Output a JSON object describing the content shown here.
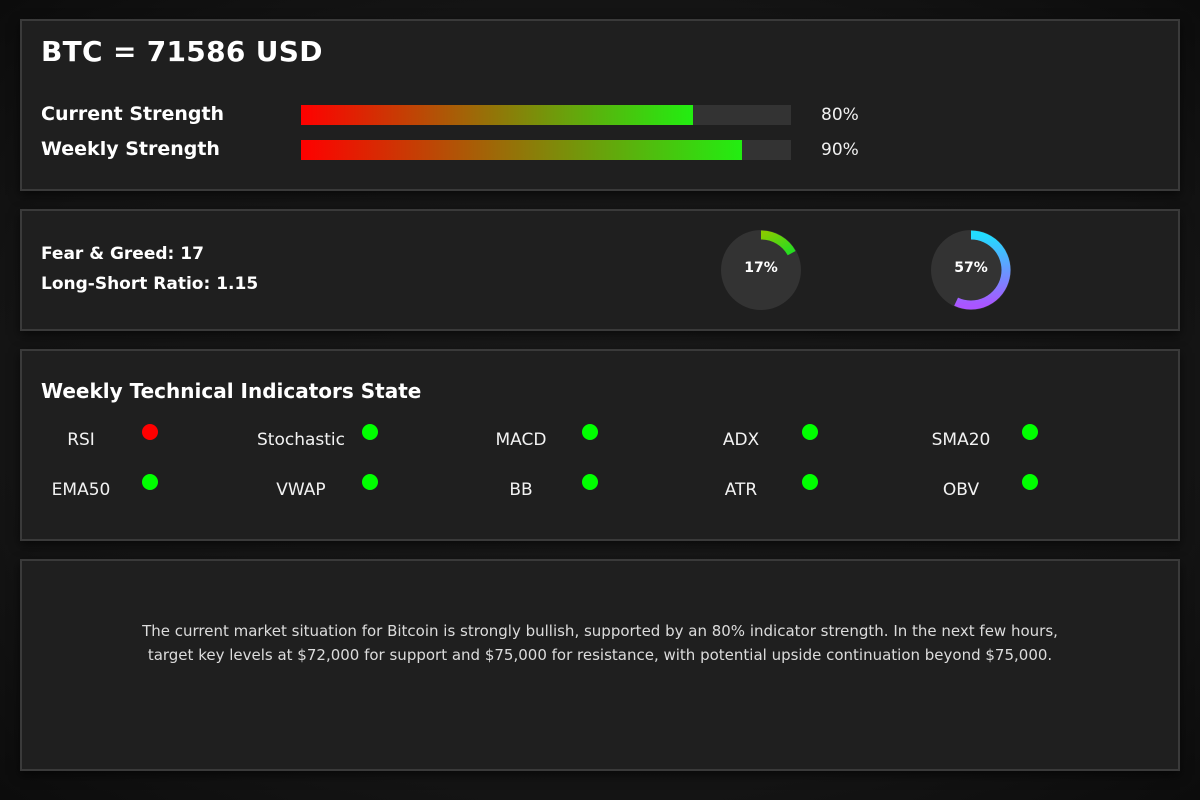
{
  "header": {
    "title": "BTC = 71586 USD"
  },
  "strength": [
    {
      "label": "Current Strength",
      "value": 80,
      "value_text": "80%"
    },
    {
      "label": "Weekly Strength",
      "value": 90,
      "value_text": "90%"
    }
  ],
  "sentiment": {
    "fear_greed_text": "Fear & Greed: 17",
    "long_short_text": "Long-Short Ratio: 1.15",
    "gauges": [
      {
        "value": 17,
        "label": "17%",
        "color_start": "#88cc00",
        "color_end": "#22dd22"
      },
      {
        "value": 57,
        "label": "57%",
        "color_start": "#22ddff",
        "color_end": "#aa55ff"
      }
    ]
  },
  "indicators": {
    "title": "Weekly Technical Indicators State",
    "items": [
      {
        "name": "RSI",
        "state_color": "#ff0000"
      },
      {
        "name": "Stochastic",
        "state_color": "#00ff00"
      },
      {
        "name": "MACD",
        "state_color": "#00ff00"
      },
      {
        "name": "ADX",
        "state_color": "#00ff00"
      },
      {
        "name": "SMA20",
        "state_color": "#00ff00"
      },
      {
        "name": "EMA50",
        "state_color": "#00ff00"
      },
      {
        "name": "VWAP",
        "state_color": "#00ff00"
      },
      {
        "name": "BB",
        "state_color": "#00ff00"
      },
      {
        "name": "ATR",
        "state_color": "#00ff00"
      },
      {
        "name": "OBV",
        "state_color": "#00ff00"
      }
    ]
  },
  "summary": {
    "line1": "The current market situation for Bitcoin is strongly bullish, supported by an 80% indicator strength. In the next few hours,",
    "line2": "target key levels at $72,000 for support and $75,000 for resistance, with potential upside continuation beyond $75,000."
  }
}
